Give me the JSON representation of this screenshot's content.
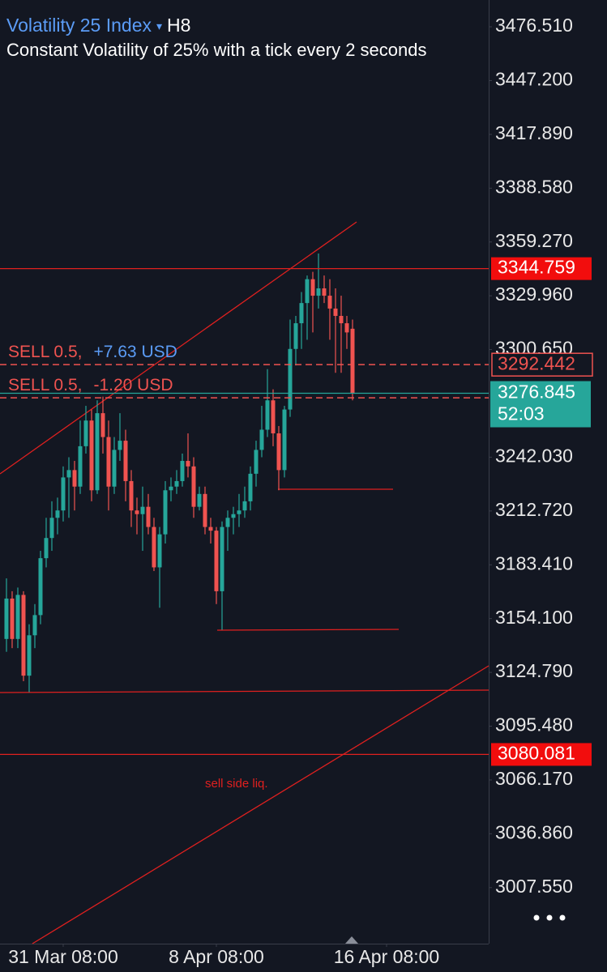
{
  "chart_data": {
    "type": "candlestick",
    "title": "Volatility 25 Index",
    "title_marker": "▾",
    "timeframe": "H8",
    "subtitle": "Constant Volatility of 25% with a tick every 2 seconds",
    "open": [
      3143,
      3165,
      3143,
      3167,
      3123,
      3145,
      3156,
      3187,
      3198,
      3209,
      3213,
      3231,
      3235,
      3226,
      3248,
      3262,
      3224,
      3266,
      3253,
      3226,
      3246,
      3251,
      3229,
      3213,
      3211,
      3215,
      3204,
      3182,
      3200,
      3224,
      3226,
      3229,
      3240,
      3237,
      3215,
      3222,
      3204,
      3202,
      3169,
      3204,
      3209,
      3211,
      3213,
      3218,
      3233,
      3246,
      3257,
      3273,
      3255,
      3235,
      3268,
      3301,
      3315,
      3326,
      3339,
      3330,
      3334,
      3330,
      3323,
      3319,
      3315,
      3312
    ],
    "high": [
      3176,
      3169,
      3171,
      3169,
      3151,
      3162,
      3191,
      3209,
      3218,
      3220,
      3237,
      3242,
      3240,
      3262,
      3270,
      3268,
      3273,
      3275,
      3262,
      3253,
      3266,
      3257,
      3235,
      3220,
      3226,
      3222,
      3209,
      3204,
      3229,
      3231,
      3235,
      3244,
      3255,
      3242,
      3226,
      3226,
      3209,
      3204,
      3207,
      3213,
      3215,
      3222,
      3226,
      3237,
      3251,
      3270,
      3290,
      3279,
      3259,
      3270,
      3317,
      3319,
      3332,
      3341,
      3343,
      3353,
      3341,
      3339,
      3334,
      3330,
      3319,
      3317
    ],
    "low": [
      3136,
      3138,
      3138,
      3120,
      3114,
      3138,
      3151,
      3182,
      3191,
      3200,
      3207,
      3209,
      3213,
      3222,
      3244,
      3218,
      3222,
      3244,
      3213,
      3222,
      3240,
      3218,
      3204,
      3200,
      3191,
      3200,
      3180,
      3160,
      3195,
      3218,
      3222,
      3226,
      3231,
      3209,
      3213,
      3200,
      3195,
      3162,
      3148,
      3191,
      3200,
      3204,
      3209,
      3213,
      3226,
      3242,
      3253,
      3248,
      3224,
      3231,
      3264,
      3292,
      3301,
      3306,
      3310,
      3323,
      3326,
      3306,
      3288,
      3288,
      3301,
      3273
    ],
    "close": [
      3165,
      3143,
      3167,
      3123,
      3145,
      3156,
      3187,
      3198,
      3209,
      3213,
      3231,
      3235,
      3226,
      3248,
      3262,
      3224,
      3266,
      3253,
      3226,
      3246,
      3251,
      3229,
      3213,
      3211,
      3215,
      3204,
      3182,
      3200,
      3224,
      3226,
      3229,
      3240,
      3237,
      3215,
      3222,
      3204,
      3202,
      3169,
      3204,
      3209,
      3211,
      3213,
      3218,
      3233,
      3246,
      3257,
      3273,
      3255,
      3235,
      3268,
      3301,
      3315,
      3326,
      3339,
      3330,
      3334,
      3330,
      3323,
      3319,
      3315,
      3310,
      3276.845
    ],
    "up_color": "#26a69a",
    "down_color": "#ef5350",
    "xlim": [
      -1.14,
      85
    ],
    "xticks": [
      {
        "value": 10,
        "label": "31 Mar 08:00"
      },
      {
        "value": 37,
        "label": "8 Apr 08:00"
      },
      {
        "value": 67,
        "label": "16 Apr 08:00"
      }
    ],
    "ylim": [
      2977.0,
      3491.1
    ],
    "yticks": [
      {
        "value": 3476.51,
        "label": "3476.510"
      },
      {
        "value": 3447.2,
        "label": "3447.200"
      },
      {
        "value": 3417.89,
        "label": "3417.890"
      },
      {
        "value": 3388.58,
        "label": "3388.580"
      },
      {
        "value": 3359.27,
        "label": "3359.270"
      },
      {
        "value": 3329.96,
        "label": "3329.960"
      },
      {
        "value": 3300.65,
        "label": "3300.650"
      },
      {
        "value": 3242.03,
        "label": "3242.030"
      },
      {
        "value": 3212.72,
        "label": "3212.720"
      },
      {
        "value": 3183.41,
        "label": "3183.410"
      },
      {
        "value": 3154.1,
        "label": "3154.100"
      },
      {
        "value": 3124.79,
        "label": "3124.790"
      },
      {
        "value": 3095.48,
        "label": "3095.480"
      },
      {
        "value": 3066.17,
        "label": "3066.170"
      },
      {
        "value": 3036.86,
        "label": "3036.860"
      },
      {
        "value": 3007.55,
        "label": "3007.550"
      }
    ],
    "price_lines": [
      3344.759,
      3080.081
    ],
    "orders": [
      {
        "label": "SELL 0.5,",
        "pnl": "+7.63 USD",
        "pnl_color": "#5b9cf6",
        "price": 3292.442
      },
      {
        "label": "SELL 0.5,",
        "pnl": "-1.20 USD",
        "pnl_color": "#ef5350",
        "price": 3274.4
      }
    ],
    "countdown": "52:03",
    "annotation": "sell side liq."
  }
}
